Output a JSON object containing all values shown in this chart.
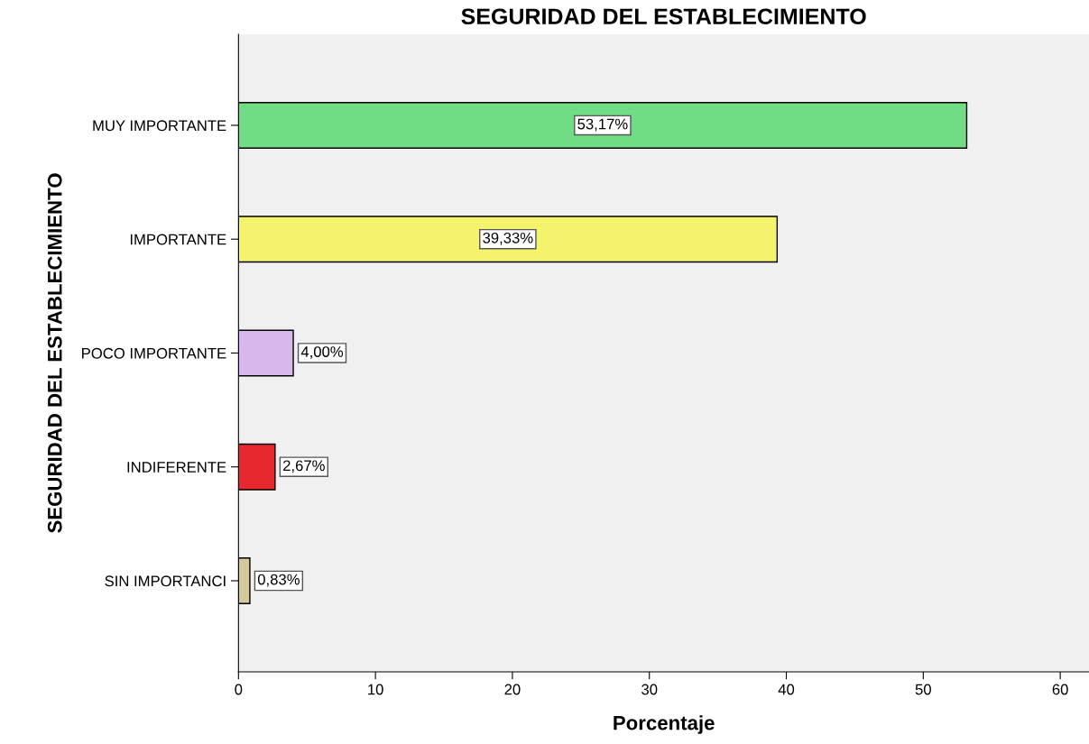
{
  "chart_data": {
    "type": "bar",
    "orientation": "horizontal",
    "title": "SEGURIDAD DEL ESTABLECIMIENTO",
    "xlabel": "Porcentaje",
    "ylabel": "SEGURIDAD DEL ESTABLECIMIENTO",
    "categories": [
      "MUY IMPORTANTE",
      "IMPORTANTE",
      "POCO IMPORTANTE",
      "INDIFERENTE",
      "SIN IMPORTANCI"
    ],
    "values": [
      53.17,
      39.33,
      4.0,
      2.67,
      0.83
    ],
    "colors": [
      "#70dc84",
      "#f5f36c",
      "#d8b8ec",
      "#e8282f",
      "#d4c89c"
    ],
    "value_labels": [
      "53,17%",
      "39,33%",
      "4,00%",
      "2,67%",
      "0,83%"
    ],
    "xlim": [
      0,
      62.1
    ],
    "xticks": [
      0,
      10,
      20,
      30,
      40,
      50,
      60
    ],
    "grid": false,
    "legend": false
  }
}
